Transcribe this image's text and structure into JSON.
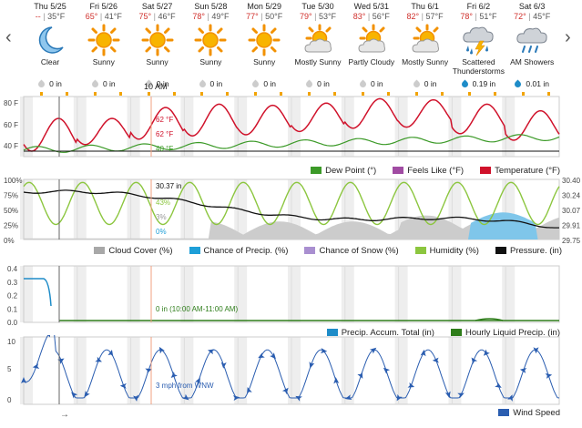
{
  "nav": {
    "prev_icon": "chevron-left-icon",
    "next_icon": "chevron-right-icon"
  },
  "days": [
    {
      "name": "Thu 5/25",
      "hi": "--",
      "lo": "35°F",
      "icon": "moon-icon",
      "cond": "Clear",
      "precip": "0 in",
      "drop": "gray"
    },
    {
      "name": "Fri 5/26",
      "hi": "65°",
      "lo": "41°F",
      "icon": "sun-icon",
      "cond": "Sunny",
      "precip": "0 in",
      "drop": "gray"
    },
    {
      "name": "Sat 5/27",
      "hi": "75°",
      "lo": "46°F",
      "icon": "sun-icon",
      "cond": "Sunny",
      "precip": "0 in",
      "drop": "gray"
    },
    {
      "name": "Sun 5/28",
      "hi": "78°",
      "lo": "49°F",
      "icon": "sun-icon",
      "cond": "Sunny",
      "precip": "0 in",
      "drop": "gray"
    },
    {
      "name": "Mon 5/29",
      "hi": "77°",
      "lo": "50°F",
      "icon": "sun-icon",
      "cond": "Sunny",
      "precip": "0 in",
      "drop": "gray"
    },
    {
      "name": "Tue 5/30",
      "hi": "79°",
      "lo": "53°F",
      "icon": "sun-cloud-icon",
      "cond": "Mostly Sunny",
      "precip": "0 in",
      "drop": "gray"
    },
    {
      "name": "Wed 5/31",
      "hi": "83°",
      "lo": "56°F",
      "icon": "sun-cloud-icon",
      "cond": "Partly Cloudy",
      "precip": "0 in",
      "drop": "gray"
    },
    {
      "name": "Thu 6/1",
      "hi": "82°",
      "lo": "57°F",
      "icon": "sun-cloud-icon",
      "cond": "Mostly Sunny",
      "precip": "0 in",
      "drop": "gray"
    },
    {
      "name": "Fri 6/2",
      "hi": "78°",
      "lo": "51°F",
      "icon": "thunderstorm-icon",
      "cond": "Scattered Thunderstorms",
      "precip": "0.19 in",
      "drop": "blue"
    },
    {
      "name": "Sat 6/3",
      "hi": "72°",
      "lo": "45°F",
      "icon": "showers-icon",
      "cond": "AM Showers",
      "precip": "0.01 in",
      "drop": "blue"
    }
  ],
  "current_time_label": "10 AM",
  "colors": {
    "temperature": "#d0122b",
    "dew_point": "#3c9a28",
    "feels_like": "#a14ca3",
    "humidity": "#8cc63f",
    "pressure": "#111111",
    "cloud_cover": "#a8a8a8",
    "precip_chance": "#1e9fd8",
    "snow_chance": "#a98fd0",
    "accum": "#1e8cc8",
    "hourly_liquid": "#2e7d1a",
    "wind": "#2a5db0"
  },
  "temp_panel": {
    "y_ticks": [
      "80 F",
      "60 F",
      "40 F"
    ],
    "marker_labels": {
      "temperature": "62 °F",
      "feels_like": "62 °F",
      "dew_point": "40 °F"
    },
    "legend": [
      {
        "label": "Dew Point (°)",
        "color": "#3c9a28"
      },
      {
        "label": "Feels Like (°F)",
        "color": "#a14ca3"
      },
      {
        "label": "Temperature (°F)",
        "color": "#d0122b"
      }
    ]
  },
  "humidity_panel": {
    "y_ticks_left": [
      "100%",
      "75%",
      "50%",
      "25%",
      "0%"
    ],
    "y_ticks_right": [
      "30.40",
      "30.24",
      "30.07",
      "29.91",
      "29.75"
    ],
    "marker_labels": {
      "pressure": "30.37 in",
      "humidity": "43%",
      "cloud": "3%",
      "precip": "0%"
    },
    "legend": [
      {
        "label": "Cloud Cover (%)",
        "color": "#a8a8a8"
      },
      {
        "label": "Chance of Precip. (%)",
        "color": "#1e9fd8"
      },
      {
        "label": "Chance of Snow (%)",
        "color": "#a98fd0"
      },
      {
        "label": "Humidity (%)",
        "color": "#8cc63f"
      },
      {
        "label": "Pressure. (in)",
        "color": "#111111"
      }
    ]
  },
  "precip_panel": {
    "y_ticks": [
      "0.4",
      "0.3",
      "0.2",
      "0.1",
      "0.0"
    ],
    "marker_label": "0 in (10:00 AM-11:00 AM)",
    "legend": [
      {
        "label": "Precip. Accum. Total (in)",
        "color": "#1e8cc8"
      },
      {
        "label": "Hourly Liquid Precip. (in)",
        "color": "#2e7d1a"
      }
    ]
  },
  "wind_panel": {
    "y_ticks": [
      "10",
      "5",
      "0"
    ],
    "marker_label": "3 mph from WNW",
    "arrow_label": "→",
    "legend": [
      {
        "label": "Wind Speed",
        "color": "#2a5db0"
      }
    ]
  }
}
